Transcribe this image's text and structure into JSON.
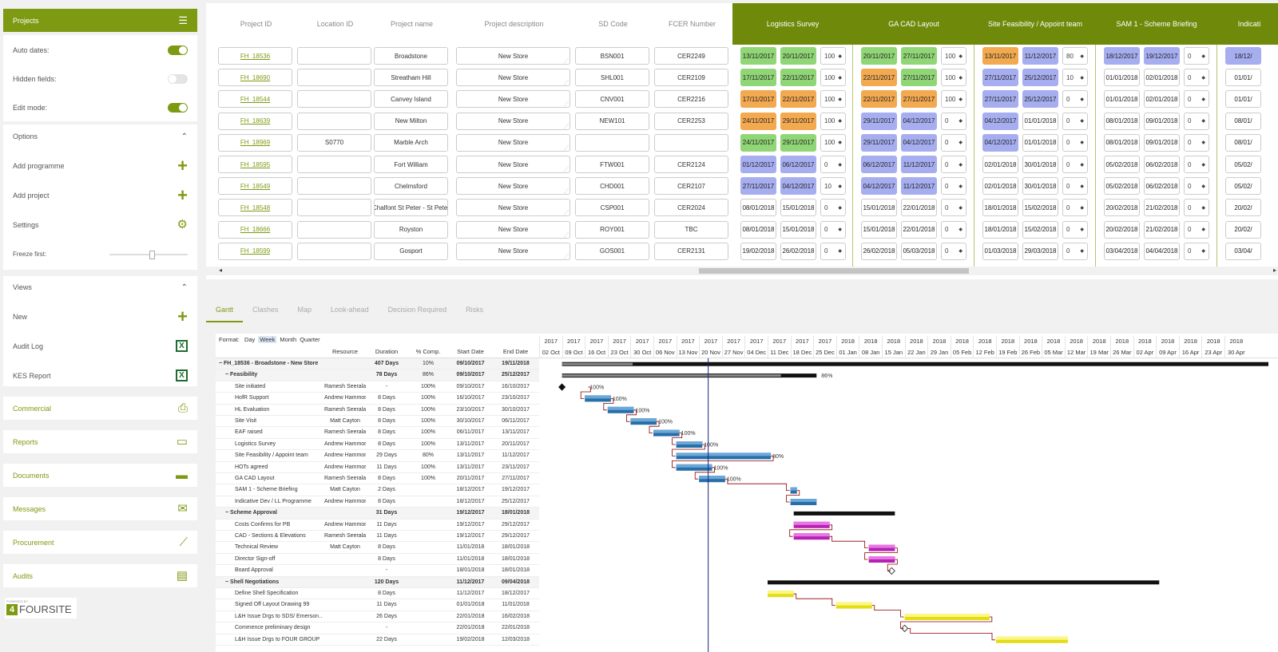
{
  "sidebar": {
    "projects_title": "Projects",
    "auto_dates": "Auto dates:",
    "hidden_fields": "Hidden fields:",
    "edit_mode": "Edit mode:",
    "options_title": "Options",
    "add_programme": "Add programme",
    "add_project": "Add project",
    "settings": "Settings",
    "freeze_first": "Freeze first:",
    "views_title": "Views",
    "new": "New",
    "audit_log": "Audit Log",
    "kes_report": "KES Report",
    "nav": [
      "Commercial",
      "Reports",
      "Documents",
      "Messages",
      "Procurement",
      "Audits"
    ],
    "powered_by": "POWERED BY",
    "brand": "FOURSITE"
  },
  "table": {
    "headers": [
      "Project ID",
      "Location ID",
      "Project name",
      "Project description",
      "SD Code",
      "FCER Number"
    ],
    "groups": [
      "Logistics Survey",
      "GA CAD Layout",
      "Site Feasibility / Appoint team",
      "SAM 1 - Scheme Briefing",
      "Indicati"
    ],
    "rows": [
      {
        "id": "FH_18536",
        "loc": "",
        "name": "Broadstone",
        "desc": "New Store",
        "sd": "BSN001",
        "fcer": "CER2249",
        "g": [
          [
            "13/11/2017",
            "20/11/2017",
            "100",
            "green"
          ],
          [
            "20/11/2017",
            "27/11/2017",
            "100",
            "green"
          ],
          [
            "13/11/2017",
            "11/12/2017",
            "80",
            "orange|blue"
          ],
          [
            "18/12/2017",
            "19/12/2017",
            "0",
            "blue"
          ],
          [
            "18/12/",
            "",
            "",
            "blue"
          ]
        ]
      },
      {
        "id": "FH_18690",
        "loc": "",
        "name": "Streatham Hill",
        "desc": "New Store",
        "sd": "SHL001",
        "fcer": "CER2109",
        "g": [
          [
            "17/11/2017",
            "22/11/2017",
            "100",
            "green"
          ],
          [
            "22/11/2017",
            "27/11/2017",
            "100",
            "orange|green"
          ],
          [
            "27/11/2017",
            "25/12/2017",
            "10",
            "blue"
          ],
          [
            "01/01/2018",
            "02/01/2018",
            "0",
            "white"
          ],
          [
            "01/01/",
            "",
            "",
            "white"
          ]
        ]
      },
      {
        "id": "FH_18544",
        "loc": "",
        "name": "Canvey Island",
        "desc": "New Store",
        "sd": "CNV001",
        "fcer": "CER2216",
        "g": [
          [
            "17/11/2017",
            "22/11/2017",
            "100",
            "orange"
          ],
          [
            "22/11/2017",
            "27/11/2017",
            "100",
            "orange"
          ],
          [
            "27/11/2017",
            "25/12/2017",
            "0",
            "blue"
          ],
          [
            "01/01/2018",
            "02/01/2018",
            "0",
            "white"
          ],
          [
            "01/01/",
            "",
            "",
            "white"
          ]
        ]
      },
      {
        "id": "FH_18639",
        "loc": "",
        "name": "New Milton",
        "desc": "New Store",
        "sd": "NEW101",
        "fcer": "CER2253",
        "g": [
          [
            "24/11/2017",
            "29/11/2017",
            "100",
            "orange"
          ],
          [
            "29/11/2017",
            "04/12/2017",
            "0",
            "blue"
          ],
          [
            "04/12/2017",
            "01/01/2018",
            "0",
            "blue|white"
          ],
          [
            "08/01/2018",
            "09/01/2018",
            "0",
            "white"
          ],
          [
            "08/01/",
            "",
            "",
            "white"
          ]
        ]
      },
      {
        "id": "FH_18969",
        "loc": "S0770",
        "name": "Marble Arch",
        "desc": "New Store",
        "sd": "",
        "fcer": "",
        "g": [
          [
            "24/11/2017",
            "29/11/2017",
            "100",
            "green"
          ],
          [
            "29/11/2017",
            "04/12/2017",
            "0",
            "blue"
          ],
          [
            "04/12/2017",
            "01/01/2018",
            "0",
            "blue|white"
          ],
          [
            "08/01/2018",
            "09/01/2018",
            "0",
            "white"
          ],
          [
            "08/01/",
            "",
            "",
            "white"
          ]
        ]
      },
      {
        "id": "FH_18595",
        "loc": "",
        "name": "Fort William",
        "desc": "New Store",
        "sd": "FTW001",
        "fcer": "CER2124",
        "g": [
          [
            "01/12/2017",
            "06/12/2017",
            "0",
            "blue"
          ],
          [
            "06/12/2017",
            "11/12/2017",
            "0",
            "blue"
          ],
          [
            "02/01/2018",
            "30/01/2018",
            "0",
            "white"
          ],
          [
            "05/02/2018",
            "06/02/2018",
            "0",
            "white"
          ],
          [
            "05/02/",
            "",
            "",
            "white"
          ]
        ]
      },
      {
        "id": "FH_18549",
        "loc": "",
        "name": "Chelmsford",
        "desc": "New Store",
        "sd": "CHD001",
        "fcer": "CER2107",
        "g": [
          [
            "27/11/2017",
            "04/12/2017",
            "10",
            "blue"
          ],
          [
            "04/12/2017",
            "11/12/2017",
            "0",
            "blue"
          ],
          [
            "02/01/2018",
            "30/01/2018",
            "0",
            "white"
          ],
          [
            "05/02/2018",
            "06/02/2018",
            "0",
            "white"
          ],
          [
            "05/02/",
            "",
            "",
            "white"
          ]
        ]
      },
      {
        "id": "FH_18548",
        "loc": "",
        "name": "Chalfont St Peter - St Peter",
        "desc": "New Store",
        "sd": "CSP001",
        "fcer": "CER2024",
        "g": [
          [
            "08/01/2018",
            "15/01/2018",
            "0",
            "white"
          ],
          [
            "15/01/2018",
            "22/01/2018",
            "0",
            "white"
          ],
          [
            "18/01/2018",
            "15/02/2018",
            "0",
            "white"
          ],
          [
            "20/02/2018",
            "21/02/2018",
            "0",
            "white"
          ],
          [
            "20/02/",
            "",
            "",
            "white"
          ]
        ]
      },
      {
        "id": "FH_18666",
        "loc": "",
        "name": "Royston",
        "desc": "New Store",
        "sd": "ROY001",
        "fcer": "TBC",
        "g": [
          [
            "08/01/2018",
            "15/01/2018",
            "0",
            "white"
          ],
          [
            "15/01/2018",
            "22/01/2018",
            "0",
            "white"
          ],
          [
            "18/01/2018",
            "15/02/2018",
            "0",
            "white"
          ],
          [
            "20/02/2018",
            "21/02/2018",
            "0",
            "white"
          ],
          [
            "20/02/",
            "",
            "",
            "white"
          ]
        ]
      },
      {
        "id": "FH_18599",
        "loc": "",
        "name": "Gosport",
        "desc": "New Store",
        "sd": "GOS001",
        "fcer": "CER2131",
        "g": [
          [
            "19/02/2018",
            "26/02/2018",
            "0",
            "white"
          ],
          [
            "26/02/2018",
            "05/03/2018",
            "0",
            "white"
          ],
          [
            "01/03/2018",
            "29/03/2018",
            "0",
            "white"
          ],
          [
            "03/04/2018",
            "04/04/2018",
            "0",
            "white"
          ],
          [
            "03/04/",
            "",
            "",
            "white"
          ]
        ]
      }
    ]
  },
  "tabs": [
    "Gantt",
    "Clashes",
    "Map",
    "Look-ahead",
    "Decision Required",
    "Risks"
  ],
  "gantt": {
    "format_label": "Format:",
    "formats": [
      "Day",
      "Week",
      "Month",
      "Quarter"
    ],
    "columns": [
      "Resource",
      "Duration",
      "% Comp.",
      "Start Date",
      "End Date"
    ],
    "years": [
      "2017",
      "2017",
      "2017",
      "2017",
      "2017",
      "2017",
      "2017",
      "2017",
      "2017",
      "2017",
      "2017",
      "2017",
      "2017",
      "2018",
      "2018",
      "2018",
      "2018",
      "2018",
      "2018",
      "2018",
      "2018",
      "2018",
      "2018",
      "2018",
      "2018",
      "2018",
      "2018",
      "2018",
      "2018",
      "2018",
      "2018"
    ],
    "weeks": [
      "02 Oct",
      "09 Oct",
      "16 Oct",
      "23 Oct",
      "30 Oct",
      "06 Nov",
      "13 Nov",
      "20 Nov",
      "27 Nov",
      "04 Dec",
      "11 Dec",
      "18 Dec",
      "25 Dec",
      "01 Jan",
      "08 Jan",
      "15 Jan",
      "22 Jan",
      "29 Jan",
      "05 Feb",
      "12 Feb",
      "19 Feb",
      "26 Feb",
      "05 Mar",
      "12 Mar",
      "19 Mar",
      "26 Mar",
      "02 Apr",
      "09 Apr",
      "16 Apr",
      "23 Apr",
      "30 Apr"
    ],
    "tasks": [
      {
        "name": "− FH_18536 - Broadstone - New Store",
        "res": "",
        "dur": "407 Days",
        "pct": "10%",
        "start": "09/10/2017",
        "end": "19/11/2018",
        "level": 0,
        "bold": true,
        "type": "summary"
      },
      {
        "name": "− Feasibility",
        "res": "",
        "dur": "78 Days",
        "pct": "86%",
        "start": "09/10/2017",
        "end": "25/12/2017",
        "level": 1,
        "bold": true,
        "type": "summary",
        "plabel": "86%"
      },
      {
        "name": "Site initiated",
        "res": "Ramesh Seeralan",
        "dur": "-",
        "pct": "100%",
        "start": "09/10/2017",
        "end": "16/10/2017",
        "level": 2,
        "type": "milestone",
        "plabel": "100%"
      },
      {
        "name": "HofR Support",
        "res": "Andrew Hammond",
        "dur": "8 Days",
        "pct": "100%",
        "start": "16/10/2017",
        "end": "23/10/2017",
        "level": 2,
        "type": "blue",
        "plabel": "100%"
      },
      {
        "name": "HL Evaluation",
        "res": "Ramesh Seeralan",
        "dur": "8 Days",
        "pct": "100%",
        "start": "23/10/2017",
        "end": "30/10/2017",
        "level": 2,
        "type": "blue",
        "plabel": "100%"
      },
      {
        "name": "Site Visit",
        "res": "Matt Cayton",
        "dur": "8 Days",
        "pct": "100%",
        "start": "30/10/2017",
        "end": "06/11/2017",
        "level": 2,
        "type": "blue",
        "plabel": "100%"
      },
      {
        "name": "EAF raised",
        "res": "Ramesh Seeralan",
        "dur": "8 Days",
        "pct": "100%",
        "start": "06/11/2017",
        "end": "13/11/2017",
        "level": 2,
        "type": "blue",
        "plabel": "100%"
      },
      {
        "name": "Logistics Survey",
        "res": "Andrew Hammond",
        "dur": "8 Days",
        "pct": "100%",
        "start": "13/11/2017",
        "end": "20/11/2017",
        "level": 2,
        "type": "blue",
        "plabel": "100%"
      },
      {
        "name": "Site Feasibility / Appoint team",
        "res": "Andrew Hammond",
        "dur": "29 Days",
        "pct": "80%",
        "start": "13/11/2017",
        "end": "11/12/2017",
        "level": 2,
        "type": "blue",
        "plabel": "80%"
      },
      {
        "name": "HOTs agreed",
        "res": "Andrew Hammond",
        "dur": "11 Days",
        "pct": "100%",
        "start": "13/11/2017",
        "end": "23/11/2017",
        "level": 2,
        "type": "blue",
        "plabel": "100%"
      },
      {
        "name": "GA CAD Layout",
        "res": "Ramesh Seeralan",
        "dur": "8 Days",
        "pct": "100%",
        "start": "20/11/2017",
        "end": "27/11/2017",
        "level": 2,
        "type": "blue",
        "plabel": "100%"
      },
      {
        "name": "SAM 1 - Scheme Briefing",
        "res": "Matt Cayton",
        "dur": "2 Days",
        "pct": "",
        "start": "18/12/2017",
        "end": "19/12/2017",
        "level": 2,
        "type": "blue"
      },
      {
        "name": "Indicative Dev / LL Programme",
        "res": "Andrew Hammond",
        "dur": "8 Days",
        "pct": "",
        "start": "18/12/2017",
        "end": "25/12/2017",
        "level": 2,
        "type": "blue"
      },
      {
        "name": "− Scheme Approval",
        "res": "",
        "dur": "31 Days",
        "pct": "",
        "start": "19/12/2017",
        "end": "18/01/2018",
        "level": 1,
        "bold": true,
        "type": "summary"
      },
      {
        "name": "Costs Confirms for PB",
        "res": "Andrew Hammond",
        "dur": "11 Days",
        "pct": "",
        "start": "19/12/2017",
        "end": "29/12/2017",
        "level": 2,
        "type": "magenta"
      },
      {
        "name": "CAD - Sections & Elevations",
        "res": "Ramesh Seeralan",
        "dur": "11 Days",
        "pct": "",
        "start": "19/12/2017",
        "end": "29/12/2017",
        "level": 2,
        "type": "magenta"
      },
      {
        "name": "Technical Review",
        "res": "Matt Cayton",
        "dur": "8 Days",
        "pct": "",
        "start": "11/01/2018",
        "end": "18/01/2018",
        "level": 2,
        "type": "magenta"
      },
      {
        "name": "Director Sign-off",
        "res": "",
        "dur": "8 Days",
        "pct": "",
        "start": "11/01/2018",
        "end": "18/01/2018",
        "level": 2,
        "type": "magenta"
      },
      {
        "name": "Board Approval",
        "res": "",
        "dur": "-",
        "pct": "",
        "start": "18/01/2018",
        "end": "18/01/2018",
        "level": 2,
        "type": "milestone2"
      },
      {
        "name": "− Shell Negotiations",
        "res": "",
        "dur": "120 Days",
        "pct": "",
        "start": "11/12/2017",
        "end": "09/04/2018",
        "level": 1,
        "bold": true,
        "type": "summary"
      },
      {
        "name": "Define Shell Specification",
        "res": "",
        "dur": "8 Days",
        "pct": "",
        "start": "11/12/2017",
        "end": "18/12/2017",
        "level": 2,
        "type": "yellow"
      },
      {
        "name": "Signed Off Layout Drawing 99",
        "res": "",
        "dur": "11 Days",
        "pct": "",
        "start": "01/01/2018",
        "end": "11/01/2018",
        "level": 2,
        "type": "yellow"
      },
      {
        "name": "L&H Issue Drgs to SDS/ Emerson…",
        "res": "",
        "dur": "26 Days",
        "pct": "",
        "start": "22/01/2018",
        "end": "16/02/2018",
        "level": 2,
        "type": "yellow"
      },
      {
        "name": "Commence preliminary design",
        "res": "",
        "dur": "-",
        "pct": "",
        "start": "22/01/2018",
        "end": "22/01/2018",
        "level": 2,
        "type": "milestone2"
      },
      {
        "name": "L&H Issue Drgs to FOUR GROUP",
        "res": "",
        "dur": "22 Days",
        "pct": "",
        "start": "19/02/2018",
        "end": "12/03/2018",
        "level": 2,
        "type": "yellow"
      }
    ]
  },
  "colors": {
    "brand": "#7d9a12",
    "group_header": "#6f8a0b",
    "green": "#90d576",
    "orange": "#f2a950",
    "blue": "#a6aef0"
  }
}
